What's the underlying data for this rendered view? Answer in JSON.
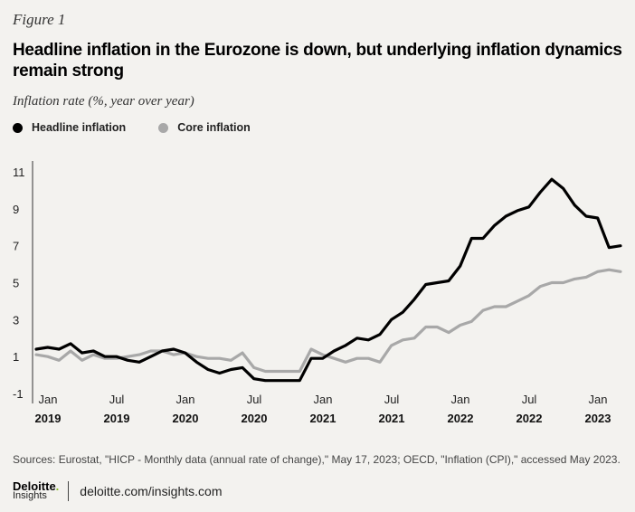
{
  "figure_label": "Figure 1",
  "title": "Headline inflation in the Eurozone is down, but underlying inflation dynamics remain strong",
  "subtitle": "Inflation rate (%, year over year)",
  "sources": "Sources: Eurostat, \"HICP - Monthly data (annual rate of change),\" May 17, 2023; OECD, \"Inflation (CPI),\" accessed May 2023.",
  "footer": {
    "logo_main": "Deloitte",
    "logo_dot": ".",
    "logo_sub": "Insights",
    "url": "deloitte.com/insights.com"
  },
  "colors": {
    "headline": "#000000",
    "core": "#a8a8a8",
    "background": "#f3f2ef"
  },
  "chart_data": {
    "type": "line",
    "ylim": [
      -1,
      11.5
    ],
    "yticks": [
      -1,
      1,
      3,
      5,
      7,
      9,
      11
    ],
    "grid": false,
    "legend": "top-left",
    "x": [
      "2019-01",
      "2019-02",
      "2019-03",
      "2019-04",
      "2019-05",
      "2019-06",
      "2019-07",
      "2019-08",
      "2019-09",
      "2019-10",
      "2019-11",
      "2019-12",
      "2020-01",
      "2020-02",
      "2020-03",
      "2020-04",
      "2020-05",
      "2020-06",
      "2020-07",
      "2020-08",
      "2020-09",
      "2020-10",
      "2020-11",
      "2020-12",
      "2021-01",
      "2021-02",
      "2021-03",
      "2021-04",
      "2021-05",
      "2021-06",
      "2021-07",
      "2021-08",
      "2021-09",
      "2021-10",
      "2021-11",
      "2021-12",
      "2022-01",
      "2022-02",
      "2022-03",
      "2022-04",
      "2022-05",
      "2022-06",
      "2022-07",
      "2022-08",
      "2022-09",
      "2022-10",
      "2022-11",
      "2022-12",
      "2023-01",
      "2023-02",
      "2023-03",
      "2023-04"
    ],
    "x_tick_labels": [
      {
        "month": "Jan",
        "year": "2019"
      },
      {
        "month": "Jul",
        "year": "2019"
      },
      {
        "month": "Jan",
        "year": "2020"
      },
      {
        "month": "Jul",
        "year": "2020"
      },
      {
        "month": "Jan",
        "year": "2021"
      },
      {
        "month": "Jul",
        "year": "2021"
      },
      {
        "month": "Jan",
        "year": "2022"
      },
      {
        "month": "Jul",
        "year": "2022"
      },
      {
        "month": "Jan",
        "year": "2023"
      }
    ],
    "series": [
      {
        "name": "Headline inflation",
        "color": "#000000",
        "values": [
          1.4,
          1.5,
          1.4,
          1.7,
          1.2,
          1.3,
          1.0,
          1.0,
          0.8,
          0.7,
          1.0,
          1.3,
          1.4,
          1.2,
          0.7,
          0.3,
          0.1,
          0.3,
          0.4,
          -0.2,
          -0.3,
          -0.3,
          -0.3,
          -0.3,
          0.9,
          0.9,
          1.3,
          1.6,
          2.0,
          1.9,
          2.2,
          3.0,
          3.4,
          4.1,
          4.9,
          5.0,
          5.1,
          5.9,
          7.4,
          7.4,
          8.1,
          8.6,
          8.9,
          9.1,
          9.9,
          10.6,
          10.1,
          9.2,
          8.6,
          8.5,
          6.9,
          7.0
        ]
      },
      {
        "name": "Core inflation",
        "color": "#a8a8a8",
        "values": [
          1.1,
          1.0,
          0.8,
          1.3,
          0.8,
          1.1,
          0.9,
          0.9,
          1.0,
          1.1,
          1.3,
          1.3,
          1.1,
          1.2,
          1.0,
          0.9,
          0.9,
          0.8,
          1.2,
          0.4,
          0.2,
          0.2,
          0.2,
          0.2,
          1.4,
          1.1,
          0.9,
          0.7,
          0.9,
          0.9,
          0.7,
          1.6,
          1.9,
          2.0,
          2.6,
          2.6,
          2.3,
          2.7,
          2.9,
          3.5,
          3.7,
          3.7,
          4.0,
          4.3,
          4.8,
          5.0,
          5.0,
          5.2,
          5.3,
          5.6,
          5.7,
          5.6
        ]
      }
    ]
  }
}
